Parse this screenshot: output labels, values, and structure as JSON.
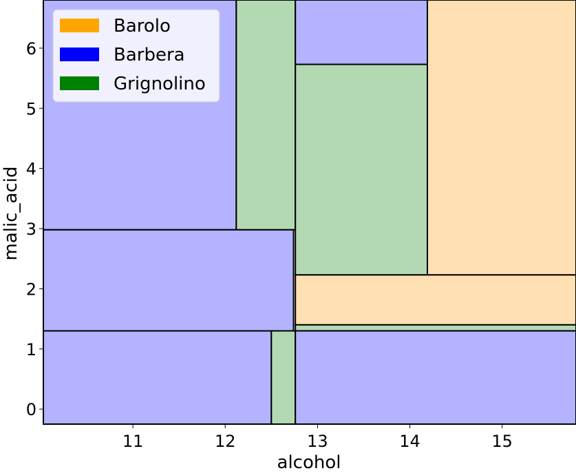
{
  "chart_data": {
    "type": "decision-regions",
    "xlabel": "alcohol",
    "ylabel": "malic_acid",
    "xlim": [
      10.03,
      15.8
    ],
    "ylim": [
      -0.25,
      6.8
    ],
    "xticks": [
      11,
      12,
      13,
      14,
      15
    ],
    "yticks": [
      0,
      1,
      2,
      3,
      4,
      5,
      6
    ],
    "grid": false,
    "legend_position": "top-left",
    "classes": [
      {
        "name": "Barolo",
        "color": "#ffa500",
        "fill": "#ffe0b3"
      },
      {
        "name": "Barbera",
        "color": "#0000ff",
        "fill": "#b3b3ff"
      },
      {
        "name": "Grignolino",
        "color": "#008000",
        "fill": "#b3d9b3"
      }
    ],
    "regions": [
      {
        "class": "Barbera",
        "x": [
          10.03,
          12.12
        ],
        "y": [
          2.98,
          6.8
        ]
      },
      {
        "class": "Grignolino",
        "x": [
          12.12,
          12.76
        ],
        "y": [
          2.98,
          6.8
        ]
      },
      {
        "class": "Barbera",
        "x": [
          10.03,
          12.74
        ],
        "y": [
          -0.25,
          2.98
        ]
      },
      {
        "class": "Barbera",
        "x": [
          10.03,
          12.5
        ],
        "y": [
          -0.25,
          1.3
        ]
      },
      {
        "class": "Grignolino",
        "x": [
          12.5,
          12.76
        ],
        "y": [
          -0.25,
          1.3
        ]
      },
      {
        "class": "Barbera",
        "x": [
          12.76,
          14.19
        ],
        "y": [
          5.73,
          6.8
        ]
      },
      {
        "class": "Grignolino",
        "x": [
          12.76,
          14.19
        ],
        "y": [
          2.23,
          5.73
        ]
      },
      {
        "class": "Barolo",
        "x": [
          14.19,
          15.8
        ],
        "y": [
          2.23,
          6.8
        ]
      },
      {
        "class": "Barolo",
        "x": [
          12.76,
          15.8
        ],
        "y": [
          1.4,
          2.23
        ]
      },
      {
        "class": "Grignolino",
        "x": [
          12.76,
          15.8
        ],
        "y": [
          1.3,
          1.4
        ]
      },
      {
        "class": "Barbera",
        "x": [
          12.76,
          15.8
        ],
        "y": [
          -0.25,
          1.3
        ]
      }
    ]
  }
}
